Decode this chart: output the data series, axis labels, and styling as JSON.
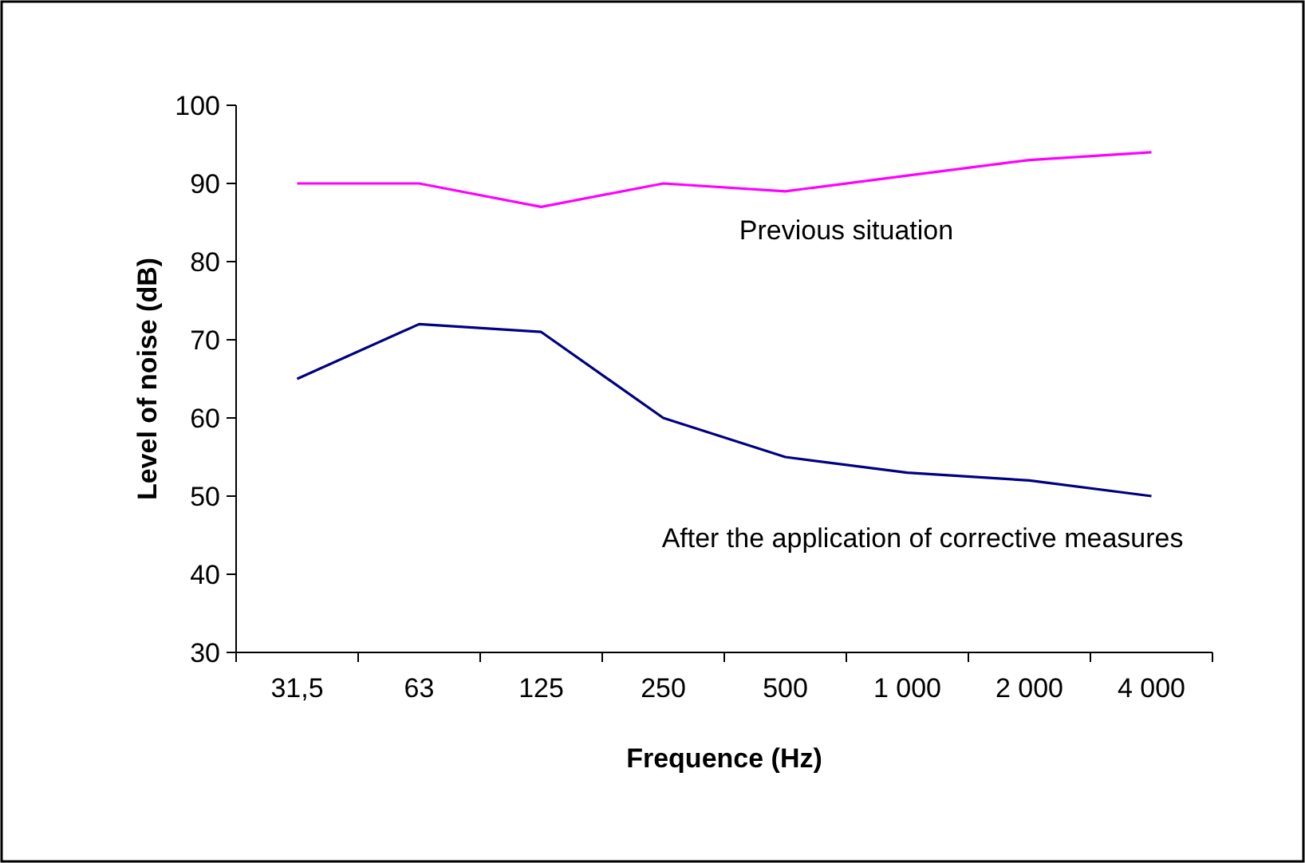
{
  "chart_data": {
    "type": "line",
    "xlabel": "Frequence (Hz)",
    "ylabel": "Level of noise (dB)",
    "categories": [
      "31,5",
      "63",
      "125",
      "250",
      "500",
      "1 000",
      "2 000",
      "4 000"
    ],
    "series": [
      {
        "name": "Previous situation",
        "color": "#ff00ff",
        "values": [
          90,
          90,
          87,
          90,
          89,
          91,
          93,
          94
        ]
      },
      {
        "name": "After the application of corrective measures",
        "color": "#000080",
        "values": [
          65,
          72,
          71,
          60,
          55,
          53,
          52,
          50
        ]
      }
    ],
    "ylim": [
      30,
      100
    ],
    "yticks": [
      30,
      40,
      50,
      60,
      70,
      80,
      90,
      100
    ],
    "grid": false,
    "marker": "none",
    "line_style": "solid"
  }
}
